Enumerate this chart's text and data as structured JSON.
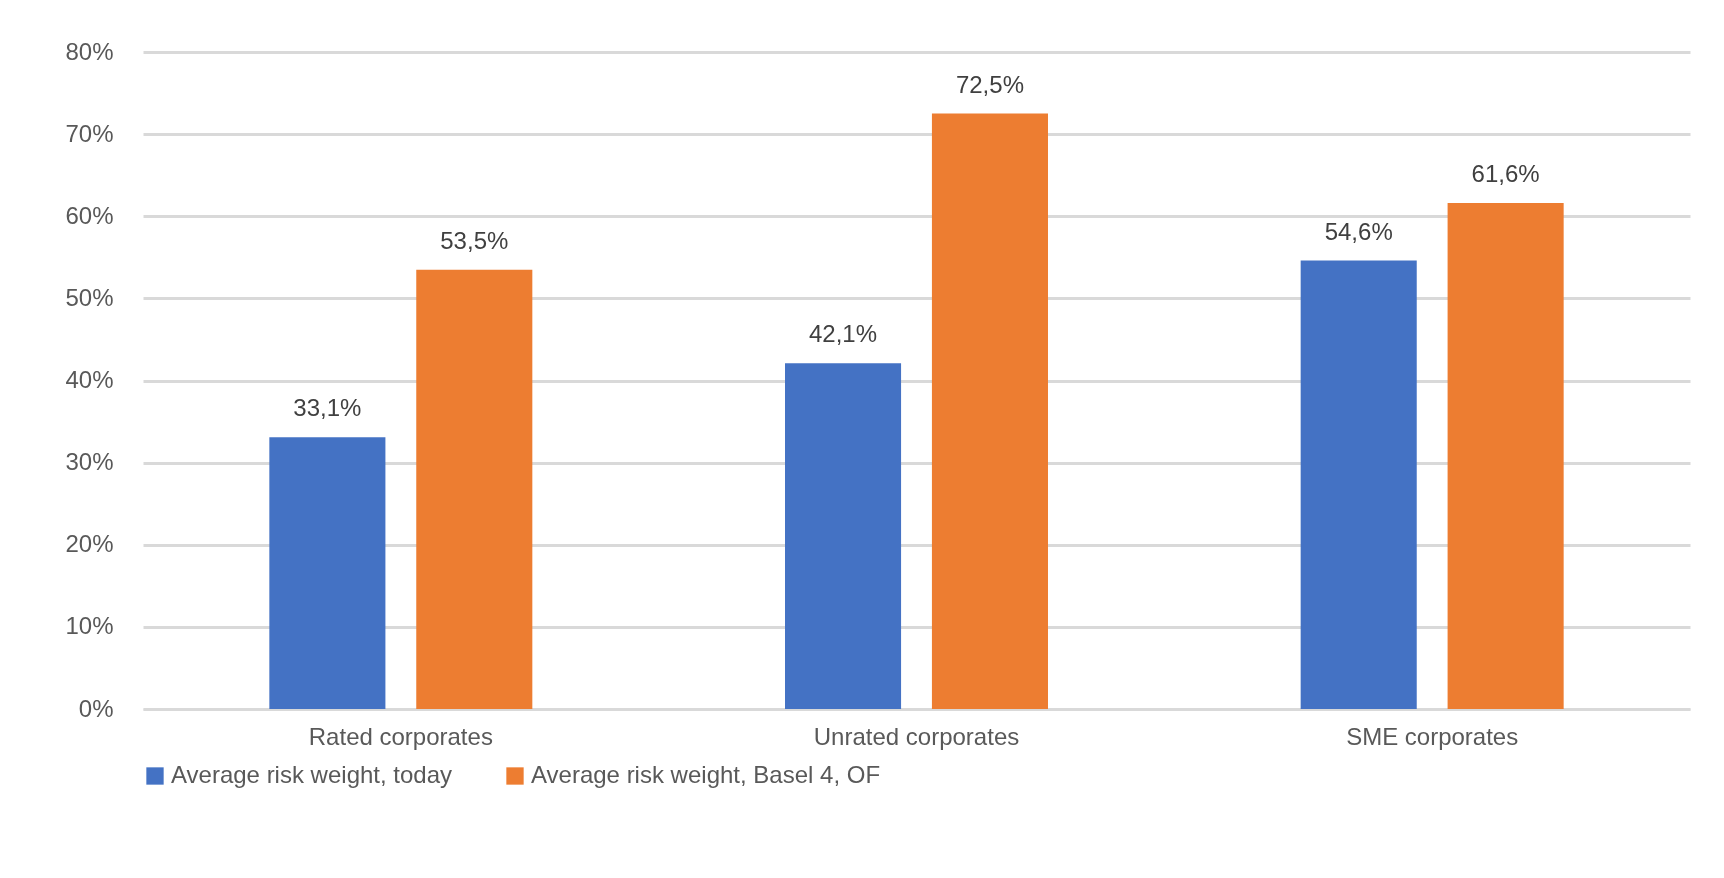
{
  "chart_data": {
    "type": "bar",
    "categories": [
      "Rated corporates",
      "Unrated corporates",
      "SME corporates"
    ],
    "series": [
      {
        "name": "Average risk weight, today",
        "color": "#4472c4",
        "values": [
          33.1,
          42.1,
          54.6
        ],
        "value_labels": [
          "33,1%",
          "42,1%",
          "54,6%"
        ]
      },
      {
        "name": "Average risk weight, Basel 4, OF",
        "color": "#ed7d31",
        "values": [
          53.5,
          72.5,
          61.6
        ],
        "value_labels": [
          "53,5%",
          "72,5%",
          "61,6%"
        ]
      }
    ],
    "ylim": [
      0,
      80
    ],
    "yticks": [
      {
        "value": 0,
        "label": "0%"
      },
      {
        "value": 10,
        "label": "10%"
      },
      {
        "value": 20,
        "label": "20%"
      },
      {
        "value": 30,
        "label": "30%"
      },
      {
        "value": 40,
        "label": "40%"
      },
      {
        "value": 50,
        "label": "50%"
      },
      {
        "value": 60,
        "label": "60%"
      },
      {
        "value": 70,
        "label": "70%"
      },
      {
        "value": 80,
        "label": "80%"
      }
    ],
    "grid": "y",
    "legend": "bottom"
  }
}
